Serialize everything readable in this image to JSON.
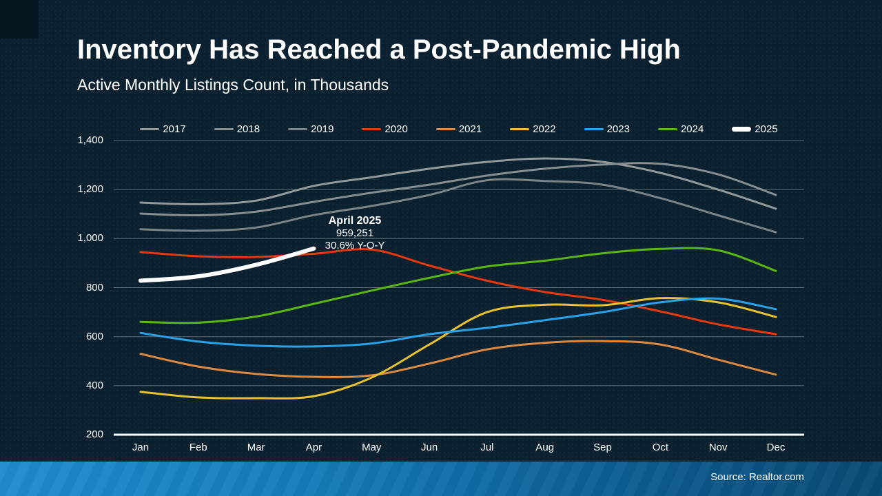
{
  "slide": {
    "title": "Inventory Has Reached a Post-Pandemic High",
    "subtitle": "Active Monthly Listings Count, in Thousands",
    "source": "Source: Realtor.com"
  },
  "annotation": {
    "title": "April 2025",
    "value": "959,251",
    "yoy": "30.6% Y-O-Y"
  },
  "colors": {
    "background": "#0c2130",
    "footer_gradient_left": "#1f8cce",
    "footer_gradient_right": "#094a73",
    "gridline": "rgba(158,170,176,0.55)",
    "baseline_axis": "#ffffff",
    "text": "#ffffff"
  },
  "chart_data": {
    "type": "line",
    "title": "Active Monthly Listings Count, in Thousands",
    "xlabel": "",
    "ylabel": "",
    "ylim": [
      200,
      1400
    ],
    "grid": true,
    "legend_position": "top",
    "categories": [
      "Jan",
      "Feb",
      "Mar",
      "Apr",
      "May",
      "Jun",
      "Jul",
      "Aug",
      "Sep",
      "Oct",
      "Nov",
      "Dec"
    ],
    "y_ticks": [
      {
        "value": 1400,
        "label": "1,400",
        "baseline": false
      },
      {
        "value": 1200,
        "label": "1,200",
        "baseline": false
      },
      {
        "value": 1000,
        "label": "1,000",
        "baseline": false
      },
      {
        "value": 800,
        "label": "800",
        "baseline": false
      },
      {
        "value": 600,
        "label": "600",
        "baseline": false
      },
      {
        "value": 400,
        "label": "400",
        "baseline": false
      },
      {
        "value": 200,
        "label": "200",
        "baseline": true
      }
    ],
    "series": [
      {
        "name": "2017",
        "color": "#949a9c",
        "width": 3,
        "values": [
          1147,
          1140,
          1155,
          1215,
          1250,
          1285,
          1313,
          1327,
          1313,
          1268,
          1200,
          1122
        ]
      },
      {
        "name": "2018",
        "color": "#888e91",
        "width": 3,
        "values": [
          1102,
          1095,
          1110,
          1150,
          1187,
          1220,
          1257,
          1285,
          1302,
          1305,
          1262,
          1178
        ]
      },
      {
        "name": "2019",
        "color": "#7d8487",
        "width": 3,
        "values": [
          1038,
          1032,
          1045,
          1096,
          1133,
          1178,
          1238,
          1235,
          1220,
          1165,
          1095,
          1026
        ]
      },
      {
        "name": "2020",
        "color": "#e8380d",
        "width": 3,
        "values": [
          945,
          928,
          925,
          938,
          955,
          890,
          828,
          782,
          750,
          703,
          650,
          610
        ]
      },
      {
        "name": "2021",
        "color": "#dd8a40",
        "width": 3,
        "values": [
          530,
          478,
          448,
          436,
          442,
          490,
          548,
          575,
          582,
          568,
          506,
          445
        ]
      },
      {
        "name": "2022",
        "color": "#e9c32f",
        "width": 3,
        "values": [
          375,
          352,
          349,
          357,
          433,
          568,
          700,
          730,
          728,
          757,
          740,
          680
        ]
      },
      {
        "name": "2023",
        "color": "#2aa2e8",
        "width": 3,
        "values": [
          615,
          580,
          563,
          560,
          572,
          610,
          636,
          667,
          700,
          740,
          755,
          712
        ]
      },
      {
        "name": "2024",
        "color": "#59b712",
        "width": 3,
        "values": [
          660,
          657,
          682,
          734,
          788,
          840,
          886,
          910,
          940,
          958,
          952,
          868
        ]
      },
      {
        "name": "2025",
        "color": "#ffffff",
        "width": 6,
        "values": [
          828,
          846,
          893,
          959.251
        ]
      }
    ]
  }
}
